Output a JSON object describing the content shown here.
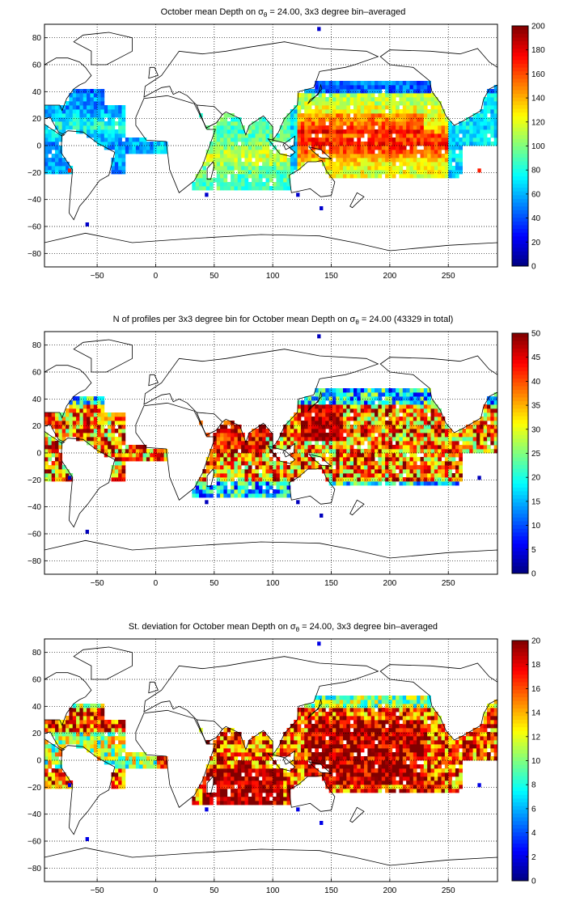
{
  "colors": {
    "land": "#ffffff",
    "coast": "#000000",
    "grid": "#000000"
  },
  "colormap": "jet",
  "coastline_note": "",
  "chart_data": [
    {
      "type": "heatmap",
      "title_parts": {
        "pre": "October mean Depth on σ",
        "sub": "θ",
        "post": " = 24.00, 3x3 degree bin–averaged"
      },
      "title": "October mean Depth on σθ = 24.00, 3x3 degree bin–averaged",
      "xlim": [
        -95,
        292
      ],
      "ylim": [
        -90,
        90
      ],
      "xticks": [
        -50,
        0,
        50,
        100,
        150,
        200,
        250
      ],
      "yticks": [
        -80,
        -60,
        -40,
        -20,
        0,
        20,
        40,
        60,
        80
      ],
      "clim": [
        0,
        200
      ],
      "cticks": [
        0,
        20,
        40,
        60,
        80,
        100,
        120,
        140,
        160,
        180,
        200
      ],
      "grid": true,
      "values_note": "",
      "field": "depth"
    },
    {
      "type": "heatmap",
      "title_parts": {
        "pre": "N of profiles per 3x3 degree bin for October mean Depth on σ",
        "sub": "θ",
        "post": " = 24.00 (43329 in total)"
      },
      "title": "N of profiles per 3x3 degree bin for October mean Depth on σθ = 24.00 (43329 in total)",
      "xlim": [
        -95,
        292
      ],
      "ylim": [
        -90,
        90
      ],
      "xticks": [
        -50,
        0,
        50,
        100,
        150,
        200,
        250
      ],
      "yticks": [
        -80,
        -60,
        -40,
        -20,
        0,
        20,
        40,
        60,
        80
      ],
      "clim": [
        0,
        50
      ],
      "cticks": [
        0,
        5,
        10,
        15,
        20,
        25,
        30,
        35,
        40,
        45,
        50
      ],
      "grid": true,
      "total_profiles": 43329,
      "field": "count"
    },
    {
      "type": "heatmap",
      "title_parts": {
        "pre": "St. deviation for October mean Depth on σ",
        "sub": "θ",
        "post": " = 24.00, 3x3 degree bin–averaged"
      },
      "title": "St. deviation for October mean Depth on σθ = 24.00, 3x3 degree bin–averaged",
      "xlim": [
        -95,
        292
      ],
      "ylim": [
        -90,
        90
      ],
      "xticks": [
        -50,
        0,
        50,
        100,
        150,
        200,
        250
      ],
      "yticks": [
        -80,
        -60,
        -40,
        -20,
        0,
        20,
        40,
        60,
        80
      ],
      "clim": [
        0,
        20
      ],
      "cticks": [
        0,
        2,
        4,
        6,
        8,
        10,
        12,
        14,
        16,
        18,
        20
      ],
      "grid": true,
      "field": "std"
    }
  ]
}
